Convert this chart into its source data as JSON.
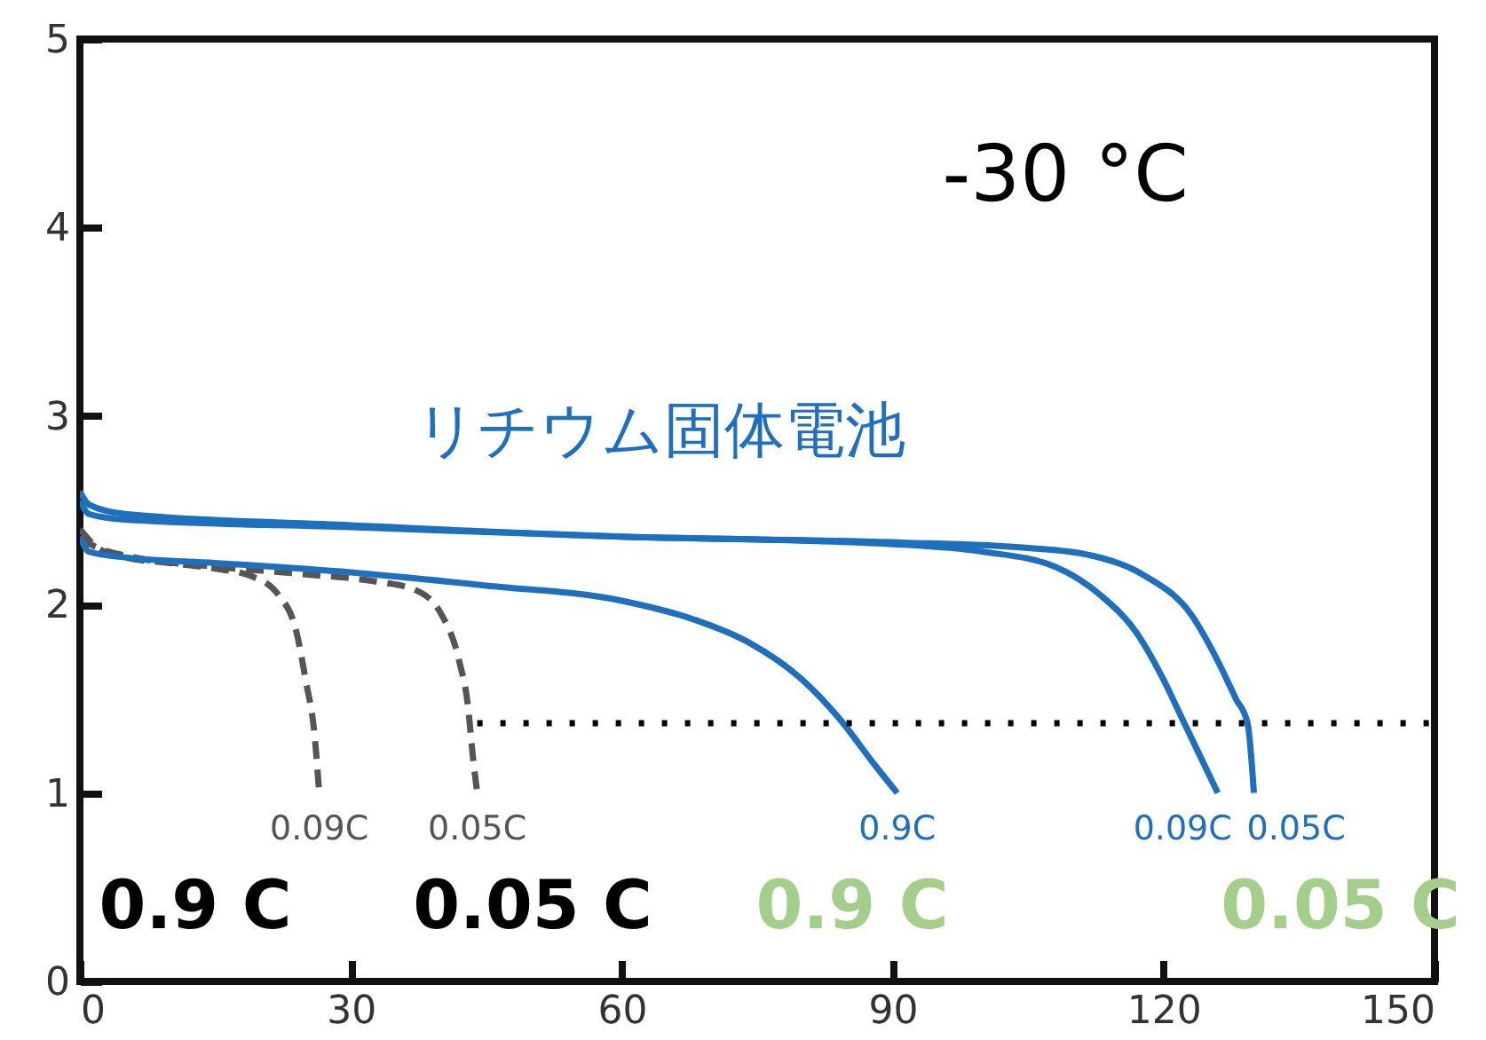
{
  "chart_data": {
    "type": "line",
    "xlim": [
      0,
      150
    ],
    "ylim": [
      0,
      5
    ],
    "xticks": [
      0,
      30,
      60,
      90,
      120,
      150
    ],
    "yticks": [
      0,
      1,
      2,
      3,
      4,
      5
    ],
    "grid": false,
    "marker": "none",
    "series": [
      {
        "name": "0.09C",
        "color": "#555555",
        "line_style": "dashed",
        "x": [
          0,
          2,
          5,
          10,
          15,
          19,
          22,
          24,
          25,
          26,
          26.5
        ],
        "values": [
          2.4,
          2.3,
          2.25,
          2.22,
          2.19,
          2.15,
          2.05,
          1.85,
          1.6,
          1.3,
          1.0
        ]
      },
      {
        "name": "0.05C",
        "color": "#555555",
        "line_style": "dashed",
        "x": [
          0,
          2,
          5,
          15,
          25,
          33,
          37,
          40,
          42,
          43,
          43.5,
          44
        ],
        "values": [
          2.35,
          2.3,
          2.26,
          2.2,
          2.16,
          2.12,
          2.08,
          1.95,
          1.7,
          1.45,
          1.2,
          1.0
        ]
      },
      {
        "name": "0.9C",
        "color": "#1f6fbf",
        "line_style": "solid",
        "x": [
          0,
          1,
          5,
          15,
          30,
          45,
          60,
          68,
          74,
          80,
          84,
          88,
          90.5
        ],
        "values": [
          2.36,
          2.28,
          2.25,
          2.22,
          2.17,
          2.1,
          2.02,
          1.92,
          1.8,
          1.6,
          1.4,
          1.15,
          1.0
        ]
      },
      {
        "name": "0.09C",
        "color": "#1f6fbf",
        "line_style": "solid",
        "x": [
          0,
          1,
          5,
          30,
          60,
          90,
          100,
          108,
          113,
          117,
          120,
          122,
          124,
          126
        ],
        "values": [
          2.55,
          2.48,
          2.45,
          2.41,
          2.36,
          2.32,
          2.28,
          2.2,
          2.05,
          1.85,
          1.6,
          1.4,
          1.2,
          1.0
        ]
      },
      {
        "name": "0.05C",
        "color": "#1f6fbf",
        "line_style": "solid",
        "x": [
          0,
          1,
          5,
          30,
          60,
          90,
          105,
          112,
          118,
          123,
          126,
          128,
          129.3,
          130
        ],
        "values": [
          2.6,
          2.53,
          2.48,
          2.42,
          2.36,
          2.33,
          2.3,
          2.26,
          2.15,
          1.95,
          1.7,
          1.5,
          1.37,
          1.0
        ]
      },
      {
        "color": "#000000",
        "line_style": "dotted",
        "x": [
          44,
          150
        ],
        "values": [
          1.37,
          1.37
        ]
      }
    ],
    "annotations": [
      "-30 °C",
      "リチウム固体電池",
      "0.9 C",
      "0.05 C",
      "0.9 C",
      "0.05 C"
    ]
  }
}
